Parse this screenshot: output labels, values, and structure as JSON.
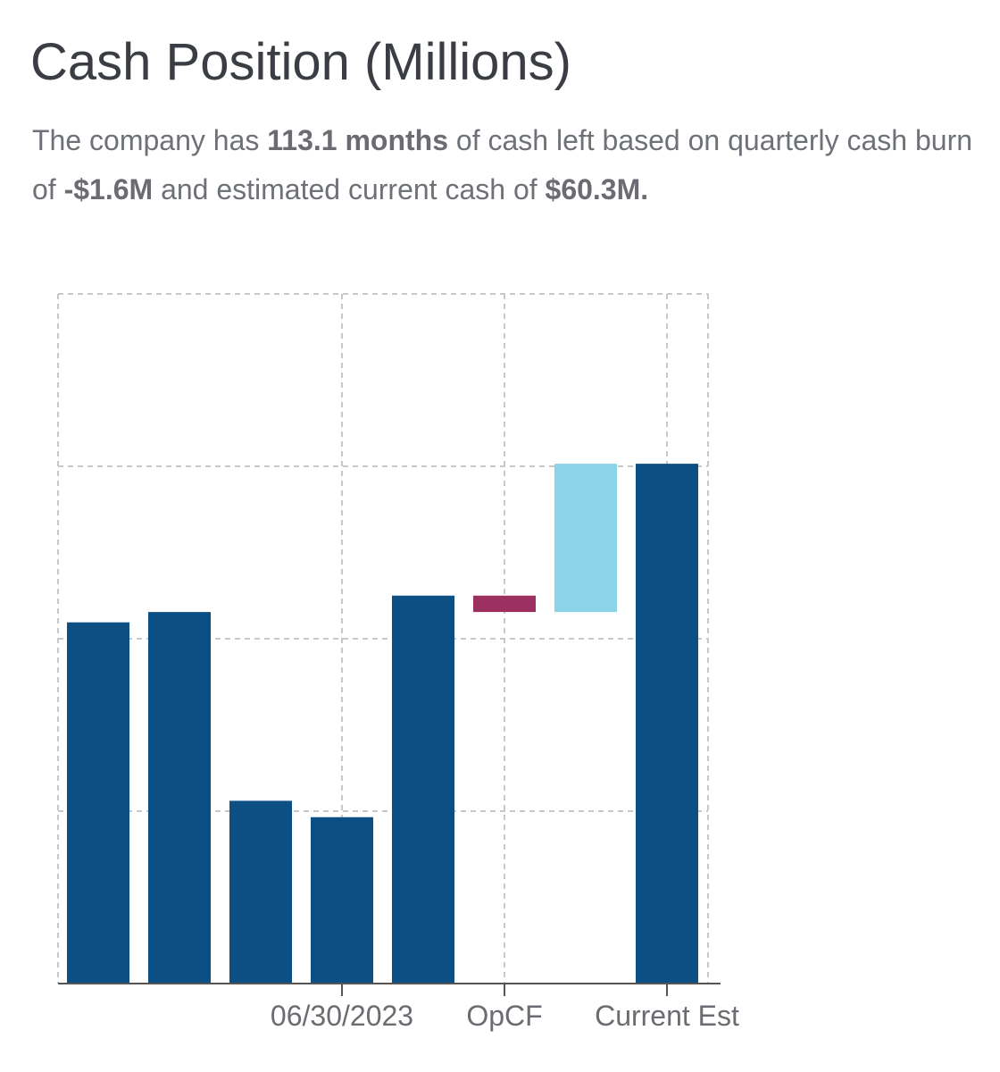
{
  "title": "Cash Position (Millions)",
  "summary": {
    "part1": "The company has ",
    "months": "113.1 months",
    "part2": " of cash left based on quarterly cash burn of ",
    "burn": "-$1.6M",
    "part3": " and estimated current cash of ",
    "cash": "$60.3M."
  },
  "colors": {
    "balance": "#0b4f85",
    "negative_flow": "#9c3060",
    "positive_flow": "#8dd3e8",
    "grid": "#c8c8c8",
    "axis": "#555555"
  },
  "chart_data": {
    "type": "bar",
    "subtype": "waterfall",
    "grid": true,
    "ylim": [
      0,
      80
    ],
    "bars": [
      {
        "label": "",
        "kind": "balance",
        "start": 0,
        "end": 41.9
      },
      {
        "label": "",
        "kind": "balance",
        "start": 0,
        "end": 43.1
      },
      {
        "label": "",
        "kind": "balance",
        "start": 0,
        "end": 21.2
      },
      {
        "label": "06/30/2023",
        "kind": "balance",
        "start": 0,
        "end": 19.3
      },
      {
        "label": "",
        "kind": "balance",
        "start": 0,
        "end": 45.0
      },
      {
        "label": "OpCF",
        "kind": "negative",
        "start": 45.0,
        "end": 43.1
      },
      {
        "label": "",
        "kind": "positive",
        "start": 43.1,
        "end": 60.3
      },
      {
        "label": "Current Est",
        "kind": "balance",
        "start": 0,
        "end": 60.3
      }
    ],
    "x_tick_labels": [
      "06/30/2023",
      "OpCF",
      "Current Est"
    ]
  }
}
